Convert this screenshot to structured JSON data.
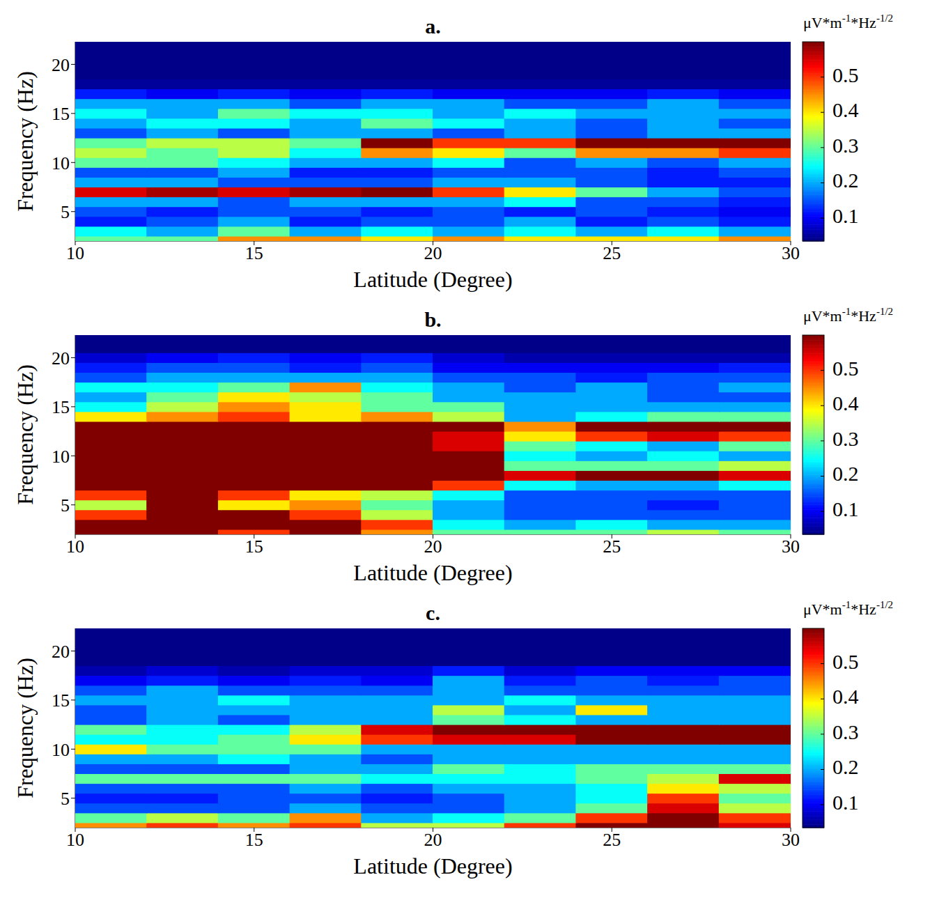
{
  "chart_data": [
    {
      "type": "heatmap",
      "title": "a.",
      "x_label": "Latitude (Degree)",
      "y_label": "Frequency (Hz)",
      "xlim": [
        10,
        30
      ],
      "xticks": [
        10,
        15,
        20,
        25,
        30
      ],
      "ylim": [
        2,
        22.3
      ],
      "yticks": [
        5,
        10,
        15,
        20
      ],
      "x": [
        11,
        13,
        15,
        17,
        19,
        21,
        23,
        25,
        27,
        29
      ],
      "y": [
        2,
        3,
        4,
        5,
        6,
        7,
        8,
        9,
        10,
        11,
        12,
        13,
        14,
        15,
        16,
        17,
        18,
        19,
        20,
        21,
        22
      ],
      "values": [
        [
          0.3,
          0.3,
          0.45,
          0.45,
          0.4,
          0.45,
          0.4,
          0.4,
          0.4,
          0.45
        ],
        [
          0.25,
          0.2,
          0.3,
          0.2,
          0.25,
          0.2,
          0.25,
          0.2,
          0.25,
          0.2
        ],
        [
          0.12,
          0.15,
          0.2,
          0.12,
          0.15,
          0.15,
          0.2,
          0.12,
          0.15,
          0.12
        ],
        [
          0.15,
          0.12,
          0.15,
          0.15,
          0.12,
          0.15,
          0.12,
          0.15,
          0.12,
          0.1
        ],
        [
          0.2,
          0.2,
          0.15,
          0.2,
          0.2,
          0.2,
          0.25,
          0.15,
          0.15,
          0.12
        ],
        [
          0.55,
          0.58,
          0.55,
          0.58,
          0.6,
          0.5,
          0.4,
          0.3,
          0.2,
          0.15
        ],
        [
          0.2,
          0.2,
          0.15,
          0.15,
          0.15,
          0.2,
          0.2,
          0.15,
          0.12,
          0.12
        ],
        [
          0.15,
          0.15,
          0.2,
          0.12,
          0.12,
          0.15,
          0.15,
          0.15,
          0.12,
          0.15
        ],
        [
          0.3,
          0.3,
          0.25,
          0.2,
          0.2,
          0.25,
          0.15,
          0.2,
          0.15,
          0.2
        ],
        [
          0.35,
          0.3,
          0.35,
          0.25,
          0.45,
          0.4,
          0.3,
          0.45,
          0.45,
          0.5
        ],
        [
          0.3,
          0.35,
          0.35,
          0.3,
          0.6,
          0.5,
          0.5,
          0.6,
          0.6,
          0.6
        ],
        [
          0.15,
          0.2,
          0.15,
          0.2,
          0.2,
          0.15,
          0.2,
          0.15,
          0.2,
          0.2
        ],
        [
          0.2,
          0.25,
          0.25,
          0.2,
          0.3,
          0.25,
          0.2,
          0.15,
          0.2,
          0.15
        ],
        [
          0.25,
          0.2,
          0.3,
          0.25,
          0.25,
          0.2,
          0.25,
          0.2,
          0.2,
          0.2
        ],
        [
          0.2,
          0.2,
          0.2,
          0.15,
          0.2,
          0.2,
          0.15,
          0.15,
          0.2,
          0.15
        ],
        [
          0.12,
          0.1,
          0.12,
          0.1,
          0.12,
          0.1,
          0.1,
          0.1,
          0.12,
          0.1
        ],
        [
          0.05,
          0.05,
          0.05,
          0.05,
          0.05,
          0.05,
          0.05,
          0.05,
          0.05,
          0.05
        ],
        [
          0.04,
          0.04,
          0.04,
          0.04,
          0.04,
          0.04,
          0.04,
          0.04,
          0.04,
          0.04
        ],
        [
          0.04,
          0.04,
          0.04,
          0.04,
          0.04,
          0.04,
          0.04,
          0.04,
          0.04,
          0.04
        ],
        [
          0.04,
          0.04,
          0.04,
          0.04,
          0.04,
          0.04,
          0.04,
          0.04,
          0.04,
          0.04
        ],
        [
          0.04,
          0.04,
          0.04,
          0.04,
          0.04,
          0.04,
          0.04,
          0.04,
          0.04,
          0.04
        ]
      ],
      "colorbar_label": "μV*m-1*Hz-1/2",
      "colorbar_lim": [
        0.035,
        0.6
      ],
      "colorbar_ticks": [
        0.1,
        0.2,
        0.3,
        0.4,
        0.5
      ]
    },
    {
      "type": "heatmap",
      "title": "b.",
      "x_label": "Latitude (Degree)",
      "y_label": "Frequency (Hz)",
      "xlim": [
        10,
        30
      ],
      "xticks": [
        10,
        15,
        20,
        25,
        30
      ],
      "ylim": [
        2,
        22.3
      ],
      "yticks": [
        5,
        10,
        15,
        20
      ],
      "x": [
        11,
        13,
        15,
        17,
        19,
        21,
        23,
        25,
        27,
        29
      ],
      "y": [
        2,
        3,
        4,
        5,
        6,
        7,
        8,
        9,
        10,
        11,
        12,
        13,
        14,
        15,
        16,
        17,
        18,
        19,
        20,
        21,
        22
      ],
      "values": [
        [
          0.6,
          0.6,
          0.5,
          0.6,
          0.45,
          0.3,
          0.3,
          0.3,
          0.35,
          0.3
        ],
        [
          0.6,
          0.6,
          0.6,
          0.6,
          0.5,
          0.25,
          0.2,
          0.25,
          0.2,
          0.2
        ],
        [
          0.5,
          0.6,
          0.6,
          0.5,
          0.35,
          0.2,
          0.15,
          0.15,
          0.15,
          0.15
        ],
        [
          0.35,
          0.6,
          0.4,
          0.45,
          0.3,
          0.2,
          0.15,
          0.15,
          0.12,
          0.15
        ],
        [
          0.5,
          0.6,
          0.5,
          0.4,
          0.35,
          0.25,
          0.15,
          0.15,
          0.15,
          0.15
        ],
        [
          0.6,
          0.6,
          0.6,
          0.6,
          0.6,
          0.5,
          0.25,
          0.2,
          0.2,
          0.25
        ],
        [
          0.6,
          0.6,
          0.6,
          0.6,
          0.6,
          0.6,
          0.55,
          0.6,
          0.6,
          0.55
        ],
        [
          0.6,
          0.6,
          0.6,
          0.6,
          0.6,
          0.6,
          0.3,
          0.3,
          0.3,
          0.35
        ],
        [
          0.6,
          0.6,
          0.6,
          0.6,
          0.6,
          0.6,
          0.25,
          0.2,
          0.25,
          0.2
        ],
        [
          0.6,
          0.6,
          0.6,
          0.6,
          0.6,
          0.55,
          0.3,
          0.25,
          0.2,
          0.3
        ],
        [
          0.6,
          0.6,
          0.6,
          0.6,
          0.6,
          0.55,
          0.4,
          0.5,
          0.55,
          0.5
        ],
        [
          0.6,
          0.6,
          0.6,
          0.6,
          0.6,
          0.6,
          0.45,
          0.6,
          0.6,
          0.6
        ],
        [
          0.4,
          0.45,
          0.5,
          0.4,
          0.45,
          0.35,
          0.2,
          0.25,
          0.3,
          0.3
        ],
        [
          0.25,
          0.35,
          0.45,
          0.4,
          0.3,
          0.3,
          0.2,
          0.2,
          0.2,
          0.2
        ],
        [
          0.2,
          0.3,
          0.4,
          0.35,
          0.3,
          0.2,
          0.2,
          0.2,
          0.15,
          0.15
        ],
        [
          0.25,
          0.25,
          0.3,
          0.45,
          0.25,
          0.2,
          0.15,
          0.2,
          0.15,
          0.2
        ],
        [
          0.15,
          0.2,
          0.2,
          0.2,
          0.2,
          0.15,
          0.15,
          0.12,
          0.15,
          0.15
        ],
        [
          0.12,
          0.15,
          0.15,
          0.12,
          0.15,
          0.1,
          0.1,
          0.1,
          0.1,
          0.12
        ],
        [
          0.08,
          0.1,
          0.12,
          0.1,
          0.12,
          0.08,
          0.06,
          0.06,
          0.06,
          0.06
        ],
        [
          0.04,
          0.04,
          0.04,
          0.04,
          0.04,
          0.04,
          0.04,
          0.04,
          0.04,
          0.04
        ],
        [
          0.04,
          0.04,
          0.04,
          0.04,
          0.04,
          0.04,
          0.04,
          0.04,
          0.04,
          0.04
        ]
      ],
      "colorbar_label": "μV*m-1*Hz-1/2",
      "colorbar_lim": [
        0.035,
        0.6
      ],
      "colorbar_ticks": [
        0.1,
        0.2,
        0.3,
        0.4,
        0.5
      ]
    },
    {
      "type": "heatmap",
      "title": "c.",
      "x_label": "Latitude (Degree)",
      "y_label": "Frequency (Hz)",
      "xlim": [
        10,
        30
      ],
      "xticks": [
        10,
        15,
        20,
        25,
        30
      ],
      "ylim": [
        2,
        22.3
      ],
      "yticks": [
        5,
        10,
        15,
        20
      ],
      "x": [
        11,
        13,
        15,
        17,
        19,
        21,
        23,
        25,
        27,
        29
      ],
      "y": [
        2,
        3,
        4,
        5,
        6,
        7,
        8,
        9,
        10,
        11,
        12,
        13,
        14,
        15,
        16,
        17,
        18,
        19,
        20,
        21,
        22
      ],
      "values": [
        [
          0.45,
          0.5,
          0.45,
          0.5,
          0.35,
          0.35,
          0.5,
          0.6,
          0.6,
          0.55
        ],
        [
          0.3,
          0.35,
          0.3,
          0.45,
          0.2,
          0.25,
          0.3,
          0.5,
          0.6,
          0.5
        ],
        [
          0.15,
          0.15,
          0.15,
          0.2,
          0.15,
          0.15,
          0.2,
          0.3,
          0.55,
          0.35
        ],
        [
          0.12,
          0.12,
          0.15,
          0.15,
          0.12,
          0.15,
          0.2,
          0.25,
          0.5,
          0.3
        ],
        [
          0.15,
          0.15,
          0.15,
          0.2,
          0.15,
          0.2,
          0.2,
          0.25,
          0.4,
          0.35
        ],
        [
          0.3,
          0.3,
          0.3,
          0.3,
          0.25,
          0.25,
          0.25,
          0.3,
          0.35,
          0.55
        ],
        [
          0.15,
          0.15,
          0.15,
          0.2,
          0.2,
          0.3,
          0.25,
          0.3,
          0.3,
          0.3
        ],
        [
          0.2,
          0.2,
          0.25,
          0.2,
          0.15,
          0.2,
          0.2,
          0.2,
          0.2,
          0.2
        ],
        [
          0.4,
          0.3,
          0.3,
          0.3,
          0.2,
          0.2,
          0.2,
          0.2,
          0.2,
          0.2
        ],
        [
          0.25,
          0.25,
          0.3,
          0.4,
          0.5,
          0.55,
          0.55,
          0.6,
          0.6,
          0.6
        ],
        [
          0.3,
          0.25,
          0.25,
          0.35,
          0.55,
          0.6,
          0.6,
          0.6,
          0.6,
          0.6
        ],
        [
          0.15,
          0.2,
          0.15,
          0.2,
          0.2,
          0.3,
          0.25,
          0.2,
          0.2,
          0.2
        ],
        [
          0.15,
          0.2,
          0.2,
          0.2,
          0.2,
          0.35,
          0.2,
          0.4,
          0.2,
          0.2
        ],
        [
          0.2,
          0.2,
          0.25,
          0.2,
          0.2,
          0.2,
          0.25,
          0.2,
          0.2,
          0.2
        ],
        [
          0.15,
          0.2,
          0.15,
          0.15,
          0.15,
          0.2,
          0.15,
          0.15,
          0.15,
          0.15
        ],
        [
          0.1,
          0.12,
          0.1,
          0.12,
          0.1,
          0.2,
          0.12,
          0.15,
          0.12,
          0.15
        ],
        [
          0.06,
          0.08,
          0.06,
          0.08,
          0.08,
          0.12,
          0.08,
          0.1,
          0.1,
          0.1
        ],
        [
          0.04,
          0.04,
          0.04,
          0.04,
          0.04,
          0.04,
          0.04,
          0.04,
          0.04,
          0.04
        ],
        [
          0.04,
          0.04,
          0.04,
          0.04,
          0.04,
          0.04,
          0.04,
          0.04,
          0.04,
          0.04
        ],
        [
          0.04,
          0.04,
          0.04,
          0.04,
          0.04,
          0.04,
          0.04,
          0.04,
          0.04,
          0.04
        ],
        [
          0.04,
          0.04,
          0.04,
          0.04,
          0.04,
          0.04,
          0.04,
          0.04,
          0.04,
          0.04
        ]
      ],
      "colorbar_label": "μV*m-1*Hz-1/2",
      "colorbar_lim": [
        0.035,
        0.6
      ],
      "colorbar_ticks": [
        0.1,
        0.2,
        0.3,
        0.4,
        0.5
      ]
    }
  ]
}
